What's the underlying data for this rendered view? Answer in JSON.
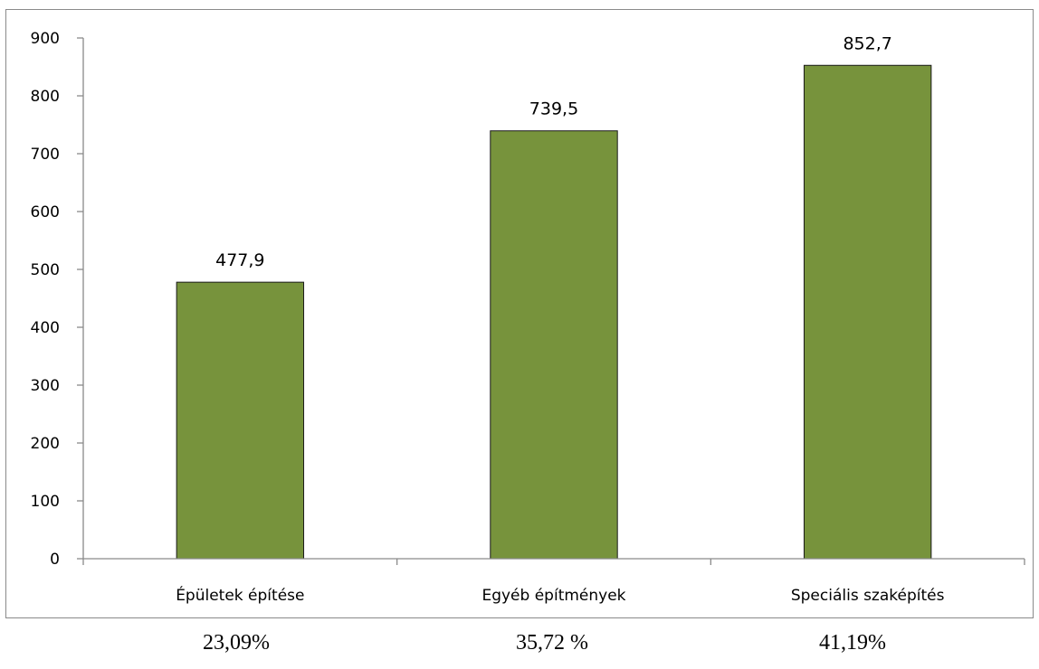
{
  "chart_data": {
    "type": "bar",
    "categories": [
      "Épületek építése",
      "Egyéb építmények",
      "Speciális szaképítés"
    ],
    "values": [
      477.9,
      739.5,
      852.7
    ],
    "data_labels": [
      "477,9",
      "739,5",
      "852,7"
    ],
    "yticks": [
      "0",
      "100",
      "200",
      "300",
      "400",
      "500",
      "600",
      "700",
      "800",
      "900"
    ],
    "ylim": [
      0,
      900
    ],
    "bar_color": "#77933C",
    "bar_outline": "#1a1a1a",
    "grid": false,
    "legend": "none",
    "title": "",
    "xlabel": "",
    "ylabel": ""
  },
  "shares": [
    "23,09%",
    "35,72 %",
    "41,19%"
  ]
}
